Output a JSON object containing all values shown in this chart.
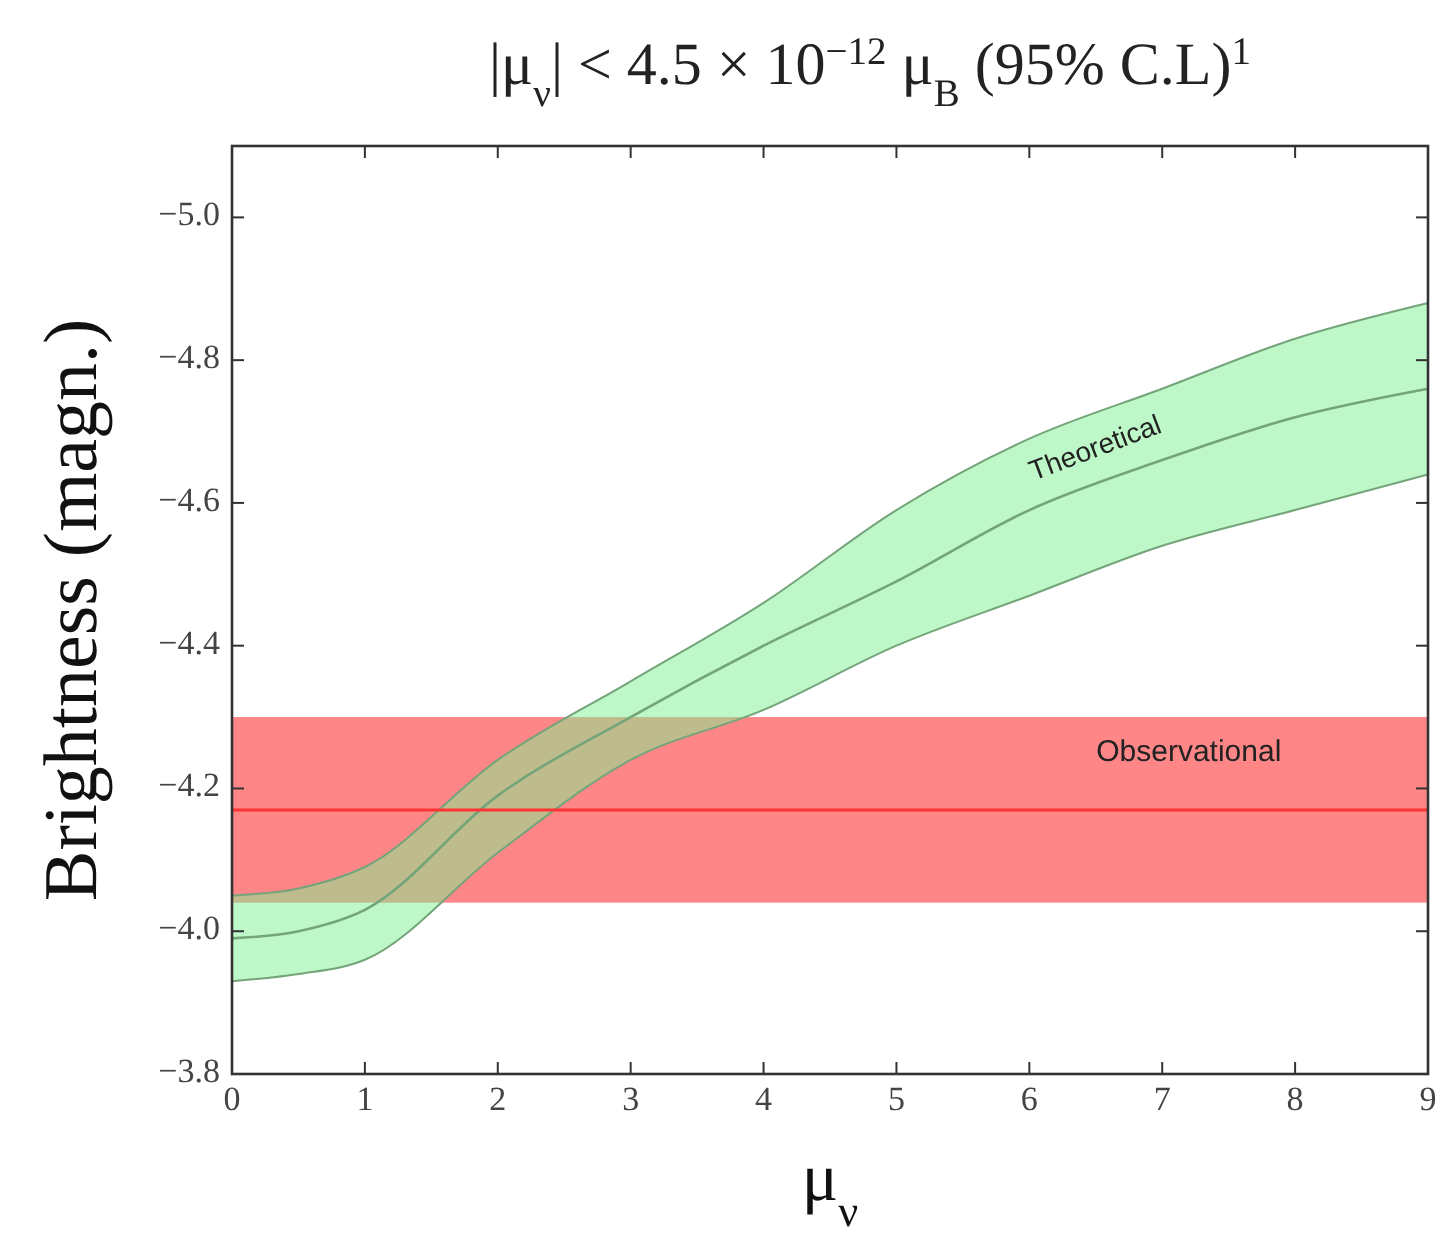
{
  "chart_data": {
    "type": "line",
    "title": "|μ$_{ν}$| < 4.5 × 10$^{−12}$ μ$_{B}$    (95% C.L)$^{1}$",
    "xlabel": "μ$_{ν}$",
    "ylabel": "Brightness (magn.)",
    "xlim": [
      0,
      9
    ],
    "xticks": [
      0,
      1,
      2,
      3,
      4,
      5,
      6,
      7,
      8,
      9
    ],
    "ylim": [
      -3.8,
      -5.1
    ],
    "yticks": [
      {
        "value": -3.8,
        "label": "−3.8"
      },
      {
        "value": -4.0,
        "label": "−4.0"
      },
      {
        "value": -4.2,
        "label": "−4.2"
      },
      {
        "value": -4.4,
        "label": "−4.4"
      },
      {
        "value": -4.6,
        "label": "−4.6"
      },
      {
        "value": -4.8,
        "label": "−4.8"
      },
      {
        "value": -5.0,
        "label": "−5.0"
      }
    ],
    "series": [
      {
        "name": "Theoretical",
        "color": "#74a47a",
        "x": [
          0,
          0.5,
          1,
          2,
          3,
          4,
          5,
          6,
          7,
          8,
          9
        ],
        "values": [
          -3.99,
          -4.0,
          -4.03,
          -4.19,
          -4.3,
          -4.4,
          -4.49,
          -4.59,
          -4.66,
          -4.72,
          -4.76
        ],
        "lower": [
          -3.93,
          -3.94,
          -3.96,
          -4.11,
          -4.24,
          -4.31,
          -4.4,
          -4.47,
          -4.54,
          -4.59,
          -4.64
        ],
        "upper": [
          -4.05,
          -4.06,
          -4.09,
          -4.24,
          -4.35,
          -4.46,
          -4.59,
          -4.69,
          -4.76,
          -4.83,
          -4.88
        ]
      }
    ],
    "bands": [
      {
        "axis": "y",
        "from": -4.04,
        "to": -4.3,
        "label": "Observational",
        "color": "#ff7f7f"
      }
    ],
    "ref_lines": [
      {
        "axis": "y",
        "value": -4.17,
        "color": "#ff3333"
      }
    ],
    "grid": false
  }
}
